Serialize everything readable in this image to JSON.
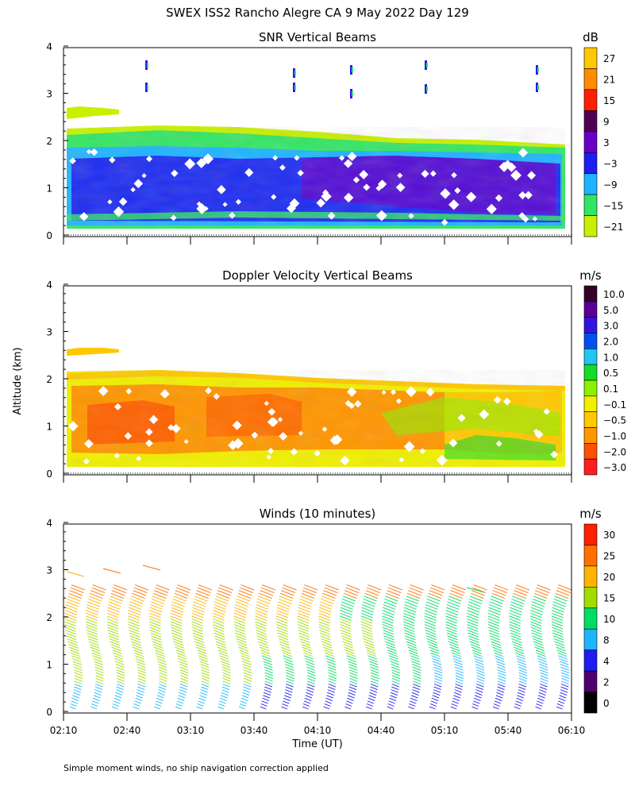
{
  "header": {
    "title": "SWEX ISS2 Rancho Alegre CA   9 May 2022 Day 129",
    "footnote": "Simple moment winds, no ship navigation correction applied"
  },
  "axes": {
    "xlabel": "Time (UT)",
    "ylabel": "Altitude (km)",
    "x_ticks": [
      "02:10",
      "02:40",
      "03:10",
      "03:40",
      "04:10",
      "04:40",
      "05:10",
      "05:40",
      "06:10"
    ],
    "y_ticks": [
      "0",
      "1",
      "2",
      "3",
      "4"
    ]
  },
  "chart_data": [
    {
      "type": "heatmap",
      "title": "SNR Vertical Beams",
      "xlabel": "",
      "ylabel": "Altitude (km)",
      "xlim": [
        "02:10",
        "06:10"
      ],
      "ylim": [
        0,
        4
      ],
      "colorbar": {
        "unit": "dB",
        "labels": [
          "27",
          "21",
          "15",
          "9",
          "3",
          "−3",
          "−9",
          "−15",
          "−21"
        ],
        "colors": [
          "#ffc800",
          "#ff8c00",
          "#ff2000",
          "#500050",
          "#6a00c8",
          "#1e1ef0",
          "#1eb4ff",
          "#32e664",
          "#c8f000"
        ]
      },
      "regions": [
        {
          "label": "main echo layer",
          "alt_bottom_km": 0.2,
          "alt_top_km": 2.0,
          "time_start": "02:10",
          "time_end": "06:00"
        },
        {
          "label": "upper echo",
          "alt_bottom_km": 2.55,
          "alt_top_km": 2.75,
          "time_start": "02:10",
          "time_end": "02:30"
        }
      ]
    },
    {
      "type": "heatmap",
      "title": "Doppler Velocity Vertical Beams",
      "xlabel": "",
      "ylabel": "Altitude (km)",
      "xlim": [
        "02:10",
        "06:10"
      ],
      "ylim": [
        0,
        4
      ],
      "colorbar": {
        "unit": "m/s",
        "labels": [
          "10.0",
          "5.0",
          "3.0",
          "2.0",
          "1.0",
          "0.5",
          "0.1",
          "−0.1",
          "−0.5",
          "−1.0",
          "−2.0",
          "−3.0"
        ],
        "colors": [
          "#320028",
          "#5a0096",
          "#3214dc",
          "#0050f0",
          "#1ec8f0",
          "#14dc28",
          "#8cf000",
          "#f0f000",
          "#ffc800",
          "#ff9600",
          "#ff5000",
          "#ff1e1e"
        ]
      },
      "regions": [
        {
          "label": "main echo layer",
          "alt_bottom_km": 0.2,
          "alt_top_km": 1.95,
          "time_start": "02:10",
          "time_end": "06:00"
        }
      ]
    },
    {
      "type": "scatter",
      "title": "Winds (10 minutes)",
      "xlabel": "Time (UT)",
      "ylabel": "Altitude (km)",
      "xlim": [
        "02:10",
        "06:10"
      ],
      "ylim": [
        0,
        4
      ],
      "colorbar": {
        "unit": "m/s",
        "labels": [
          "30",
          "25",
          "20",
          "15",
          "10",
          "8",
          "4",
          "2",
          "0"
        ],
        "colors": [
          "#ff2000",
          "#ff7000",
          "#ffb400",
          "#a0dc00",
          "#00dc64",
          "#1eb4ff",
          "#1e1ef0",
          "#50006e",
          "#000000"
        ]
      },
      "profiles_times": [
        "02:10",
        "02:20",
        "02:30",
        "02:40",
        "02:50",
        "03:00",
        "03:10",
        "03:20",
        "03:30",
        "03:40",
        "03:50",
        "04:00",
        "04:10",
        "04:20",
        "04:30",
        "04:40",
        "04:50",
        "05:00",
        "05:10",
        "05:20",
        "05:30",
        "05:40",
        "05:50",
        "06:00"
      ],
      "profile_top_km": 2.7,
      "profile_bottom_km": 0.1
    }
  ]
}
